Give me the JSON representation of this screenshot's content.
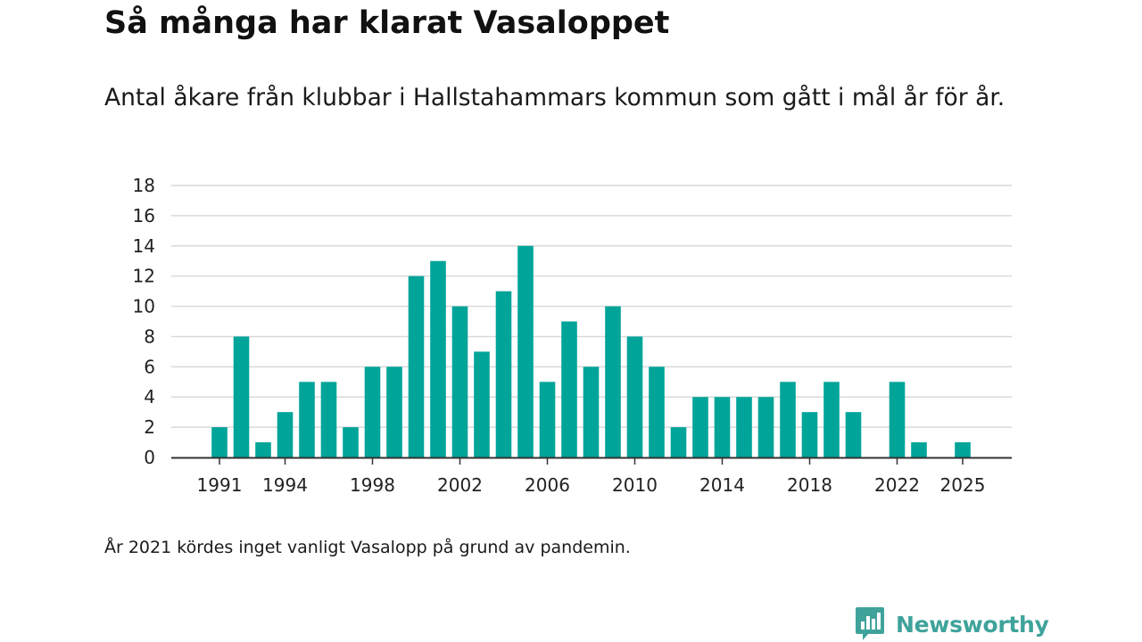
{
  "header": {
    "title": "Så många har klarat Vasaloppet",
    "subtitle": "Antal åkare från klubbar i Hallstahammars kommun som gått i mål år för år."
  },
  "footer": {
    "note": "År 2021 kördes inget vanligt Vasalopp på grund av pandemin.",
    "brand": "Newsworthy"
  },
  "colors": {
    "bar": "#00a499",
    "grid": "#d9d9d9",
    "axis": "#333333",
    "brand": "#3fa39b"
  },
  "chart_data": {
    "type": "bar",
    "title": "Så många har klarat Vasaloppet",
    "subtitle": "Antal åkare från klubbar i Hallstahammars kommun som gått i mål år för år.",
    "xlabel": "",
    "ylabel": "",
    "categories": [
      1991,
      1992,
      1993,
      1994,
      1995,
      1996,
      1997,
      1998,
      1999,
      2000,
      2001,
      2002,
      2003,
      2004,
      2005,
      2006,
      2007,
      2008,
      2009,
      2010,
      2011,
      2012,
      2013,
      2014,
      2015,
      2016,
      2017,
      2018,
      2019,
      2020,
      2021,
      2022,
      2023,
      2024,
      2025
    ],
    "values": [
      2,
      8,
      1,
      3,
      5,
      5,
      2,
      6,
      6,
      12,
      13,
      10,
      7,
      11,
      14,
      5,
      9,
      6,
      10,
      8,
      6,
      2,
      4,
      4,
      4,
      4,
      5,
      3,
      5,
      3,
      0,
      5,
      1,
      0,
      1
    ],
    "xticks": [
      1991,
      1994,
      1998,
      2002,
      2006,
      2010,
      2014,
      2018,
      2022,
      2025
    ],
    "yticks": [
      0,
      2,
      4,
      6,
      8,
      10,
      12,
      14,
      16,
      18
    ],
    "ylim": [
      0,
      18
    ],
    "grid": true,
    "legend": "none"
  }
}
